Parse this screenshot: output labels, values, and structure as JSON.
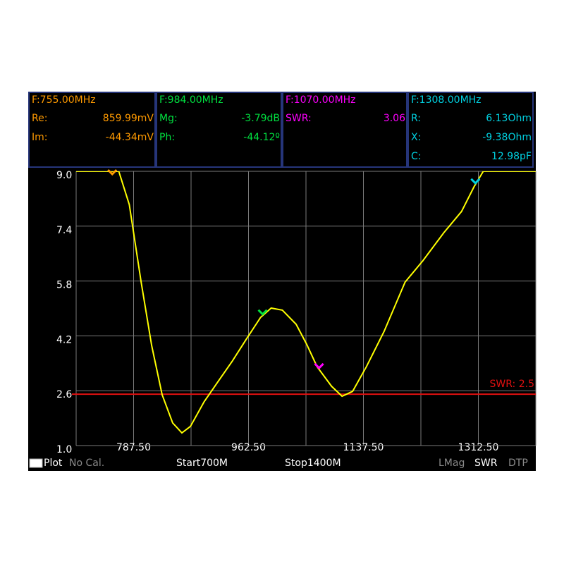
{
  "chart_data": {
    "type": "line",
    "x": [
      700,
      740,
      765,
      781,
      799,
      815,
      831,
      847,
      861,
      874,
      895,
      917,
      938,
      960,
      981,
      997,
      1014,
      1035,
      1051,
      1067,
      1089,
      1105,
      1121,
      1142,
      1169,
      1201,
      1228,
      1260,
      1287,
      1306,
      1320,
      1360,
      1400
    ],
    "values": [
      9,
      9,
      9,
      8.03,
      5.77,
      3.92,
      2.48,
      1.66,
      1.37,
      1.56,
      2.28,
      2.89,
      3.47,
      4.13,
      4.74,
      5.01,
      4.95,
      4.54,
      3.96,
      3.3,
      2.73,
      2.44,
      2.58,
      3.3,
      4.33,
      5.77,
      6.39,
      7.21,
      7.83,
      8.55,
      9,
      9,
      9
    ],
    "color": "#ffff00",
    "xlim": [
      700,
      1400
    ],
    "xticks": [
      {
        "value": 787.5,
        "label": "787.50"
      },
      {
        "value": 962.5,
        "label": "962.50"
      },
      {
        "value": 1137.5,
        "label": "1137.50"
      },
      {
        "value": 1312.5,
        "label": "1312.50"
      }
    ],
    "xminor": [
      700,
      875,
      1050,
      1225,
      1400
    ],
    "ylim": [
      1,
      9
    ],
    "yticks": [
      {
        "value": 1,
        "label": "1.0"
      },
      2.6,
      4.2,
      5.8,
      7.4,
      {
        "value": 9,
        "label": "9.0"
      }
    ],
    "grid": true,
    "reference": {
      "value": 2.5,
      "label": "SWR: 2.5",
      "color": "#e01010"
    },
    "markers": [
      {
        "freq": 755,
        "color": "#ff9a00",
        "title": "F:755.00MHz",
        "rows": [
          [
            "Re:",
            "859.99mV"
          ],
          [
            "Im:",
            "-44.34mV"
          ]
        ]
      },
      {
        "freq": 984,
        "color": "#00e040",
        "title": "F:984.00MHz",
        "rows": [
          [
            "Mg:",
            "-3.79dB"
          ],
          [
            "Ph:",
            "-44.12º"
          ]
        ]
      },
      {
        "freq": 1070,
        "color": "#ff00ff",
        "title": "F:1070.00MHz",
        "rows": [
          [
            "SWR:",
            "3.06"
          ]
        ]
      },
      {
        "freq": 1308,
        "color": "#00d0e0",
        "title": "F:1308.00MHz",
        "rows": [
          [
            "R:",
            "6.13Ohm"
          ],
          [
            "X:",
            "-9.38Ohm"
          ],
          [
            "C:",
            "12.98pF"
          ]
        ]
      }
    ]
  },
  "status_bar": {
    "mode": "Plot",
    "cal": "No Cal.",
    "start": "Start700M",
    "stop": "Stop1400M",
    "format1": "LMag",
    "format2": "SWR",
    "format3": "DTP"
  }
}
